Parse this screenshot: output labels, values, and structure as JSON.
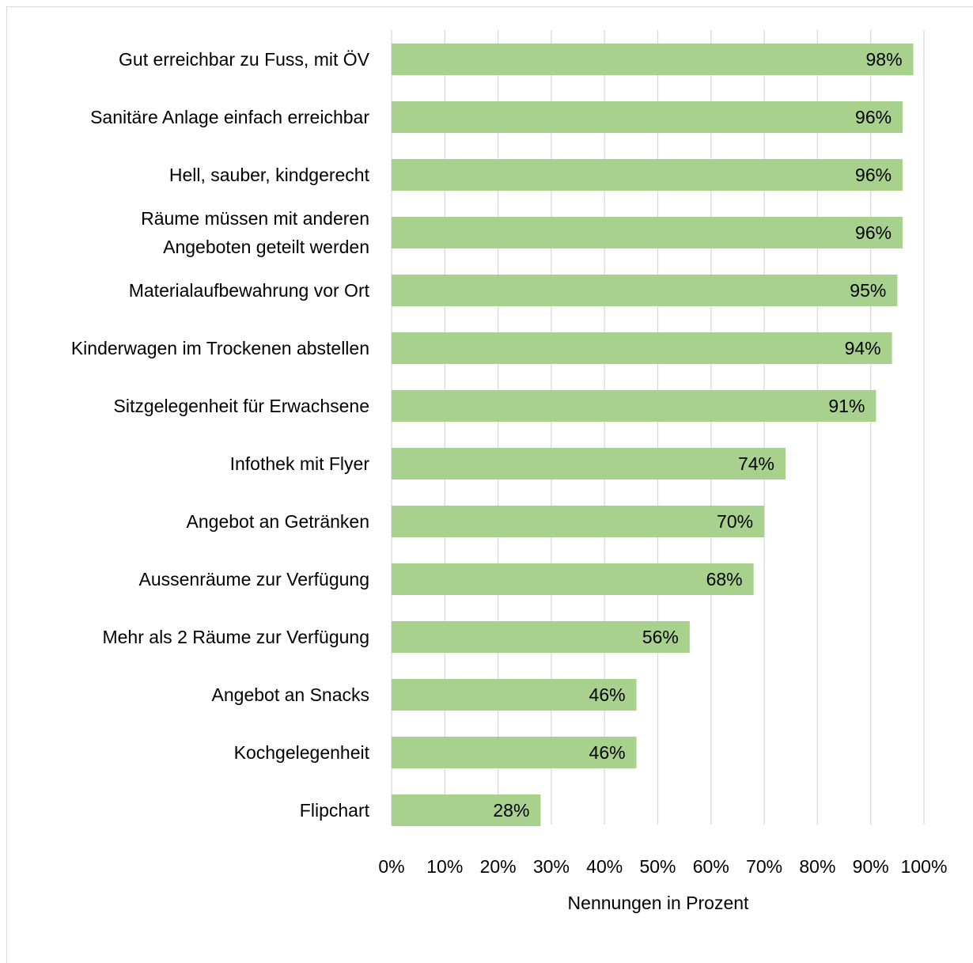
{
  "chart_data": {
    "type": "barh",
    "categories": [
      "Gut erreichbar zu Fuss, mit ÖV",
      "Sanitäre Anlage einfach erreichbar",
      "Hell, sauber, kindgerecht",
      "Räume müssen mit anderen\nAngeboten geteilt werden",
      "Materialaufbewahrung vor Ort",
      "Kinderwagen im Trockenen abstellen",
      "Sitzgelegenheit für Erwachsene",
      "Infothek mit Flyer",
      "Angebot an Getränken",
      "Aussenräume zur Verfügung",
      "Mehr als 2 Räume zur Verfügung",
      "Angebot an Snacks",
      "Kochgelegenheit",
      "Flipchart"
    ],
    "values": [
      98,
      96,
      96,
      96,
      95,
      94,
      91,
      74,
      70,
      68,
      56,
      46,
      46,
      28
    ],
    "value_labels": [
      "98%",
      "96%",
      "96%",
      "96%",
      "95%",
      "94%",
      "91%",
      "74%",
      "70%",
      "68%",
      "56%",
      "46%",
      "46%",
      "28%"
    ],
    "color": "#a9d18e",
    "xlim": [
      0,
      100
    ],
    "xticks": [
      {
        "value": 0,
        "label": "0%"
      },
      {
        "value": 10,
        "label": "10%"
      },
      {
        "value": 20,
        "label": "20%"
      },
      {
        "value": 30,
        "label": "30%"
      },
      {
        "value": 40,
        "label": "40%"
      },
      {
        "value": 50,
        "label": "50%"
      },
      {
        "value": 60,
        "label": "60%"
      },
      {
        "value": 70,
        "label": "70%"
      },
      {
        "value": 80,
        "label": "80%"
      },
      {
        "value": 90,
        "label": "90%"
      },
      {
        "value": 100,
        "label": "100%"
      }
    ],
    "xlabel": "Nennungen in Prozent",
    "grid": true
  }
}
